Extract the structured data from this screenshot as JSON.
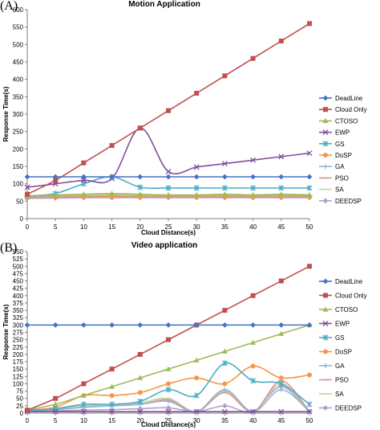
{
  "colors": {
    "DeadLine": "#4472C4",
    "Cloud Only": "#C0504D",
    "CTOSO": "#9BBB59",
    "EWP": "#7F4F9F",
    "GS": "#4BACC6",
    "DoSP": "#F79646",
    "GA": "#95B3D7",
    "PSO": "#D99594",
    "SA": "#C3D69B",
    "DEEDSP": "#B2A1C7"
  },
  "chart_data": [
    {
      "panel_label": "(A)",
      "type": "line",
      "title": "Motion Application",
      "xlabel": "Cloud Distance(s)",
      "ylabel": "Response Time(s)",
      "x": [
        0,
        5,
        10,
        15,
        20,
        25,
        30,
        35,
        40,
        45,
        50
      ],
      "xticks": [
        "0",
        "5",
        "10",
        "15",
        "20",
        "25",
        "30",
        "35",
        "40",
        "45",
        "50"
      ],
      "ylim": [
        0,
        600
      ],
      "yticks": [
        "0",
        "50",
        "100",
        "150",
        "200",
        "250",
        "300",
        "350",
        "400",
        "450",
        "500",
        "550",
        "600"
      ],
      "grid": false,
      "legend": "right",
      "series": [
        {
          "name": "DeadLine",
          "marker": "diamond",
          "values": [
            120,
            120,
            120,
            120,
            120,
            120,
            120,
            120,
            120,
            120,
            120
          ]
        },
        {
          "name": "Cloud Only",
          "marker": "square",
          "values": [
            70,
            110,
            160,
            210,
            260,
            310,
            360,
            410,
            460,
            510,
            560
          ]
        },
        {
          "name": "CTOSO",
          "marker": "triangle",
          "values": [
            65,
            68,
            70,
            72,
            70,
            68,
            68,
            70,
            68,
            70,
            68
          ]
        },
        {
          "name": "EWP",
          "marker": "x",
          "values": [
            90,
            100,
            110,
            115,
            260,
            135,
            148,
            158,
            168,
            178,
            188
          ]
        },
        {
          "name": "GS",
          "marker": "star",
          "values": [
            65,
            72,
            100,
            120,
            90,
            88,
            88,
            88,
            88,
            88,
            88
          ]
        },
        {
          "name": "DoSP",
          "marker": "circle",
          "values": [
            60,
            62,
            62,
            63,
            62,
            62,
            62,
            62,
            62,
            62,
            62
          ]
        },
        {
          "name": "GA",
          "marker": "plus",
          "values": [
            62,
            63,
            64,
            65,
            64,
            64,
            64,
            64,
            64,
            64,
            64
          ]
        },
        {
          "name": "PSO",
          "marker": "dash",
          "values": [
            63,
            64,
            65,
            66,
            65,
            65,
            65,
            65,
            65,
            65,
            65
          ]
        },
        {
          "name": "SA",
          "marker": "dash",
          "values": [
            64,
            65,
            66,
            68,
            66,
            66,
            66,
            66,
            66,
            66,
            66
          ]
        },
        {
          "name": "DEEDSP",
          "marker": "diamond",
          "values": [
            58,
            59,
            60,
            60,
            60,
            60,
            60,
            60,
            60,
            60,
            60
          ]
        }
      ]
    },
    {
      "panel_label": "(B)",
      "type": "line",
      "title": "Video application",
      "xlabel": "Cloud Distance(s)",
      "ylabel": "Response Time(s)",
      "x": [
        0,
        5,
        10,
        15,
        20,
        25,
        30,
        35,
        40,
        45,
        50
      ],
      "xticks": [
        "0",
        "5",
        "10",
        "15",
        "20",
        "25",
        "30",
        "35",
        "40",
        "45",
        "50"
      ],
      "ylim": [
        0,
        550
      ],
      "yticks": [
        "0",
        "25",
        "50",
        "75",
        "100",
        "125",
        "150",
        "175",
        "200",
        "225",
        "250",
        "275",
        "300",
        "325",
        "350",
        "375",
        "400",
        "425",
        "450",
        "475",
        "500",
        "525",
        "550"
      ],
      "grid": false,
      "legend": "right",
      "series": [
        {
          "name": "DeadLine",
          "marker": "diamond",
          "values": [
            300,
            300,
            300,
            300,
            300,
            300,
            300,
            300,
            300,
            300,
            300
          ]
        },
        {
          "name": "Cloud Only",
          "marker": "square",
          "values": [
            10,
            50,
            100,
            150,
            200,
            250,
            300,
            350,
            400,
            450,
            500
          ]
        },
        {
          "name": "CTOSO",
          "marker": "triangle",
          "values": [
            10,
            30,
            60,
            90,
            120,
            150,
            180,
            210,
            240,
            270,
            300
          ]
        },
        {
          "name": "EWP",
          "marker": "x",
          "values": [
            5,
            5,
            5,
            5,
            5,
            5,
            5,
            5,
            5,
            5,
            5
          ]
        },
        {
          "name": "GS",
          "marker": "star",
          "values": [
            8,
            15,
            30,
            30,
            40,
            80,
            60,
            170,
            110,
            100,
            30
          ]
        },
        {
          "name": "DoSP",
          "marker": "circle",
          "values": [
            10,
            20,
            60,
            60,
            70,
            100,
            120,
            100,
            160,
            120,
            130
          ]
        },
        {
          "name": "GA",
          "marker": "plus",
          "values": [
            8,
            12,
            20,
            25,
            30,
            40,
            5,
            80,
            5,
            80,
            5
          ]
        },
        {
          "name": "PSO",
          "marker": "dash",
          "values": [
            8,
            12,
            20,
            25,
            30,
            45,
            5,
            70,
            5,
            110,
            5
          ]
        },
        {
          "name": "SA",
          "marker": "dash",
          "values": [
            8,
            12,
            25,
            28,
            35,
            50,
            5,
            75,
            5,
            100,
            5
          ]
        },
        {
          "name": "DEEDSP",
          "marker": "diamond",
          "values": [
            5,
            8,
            10,
            12,
            15,
            18,
            5,
            25,
            5,
            90,
            5
          ]
        }
      ]
    }
  ]
}
